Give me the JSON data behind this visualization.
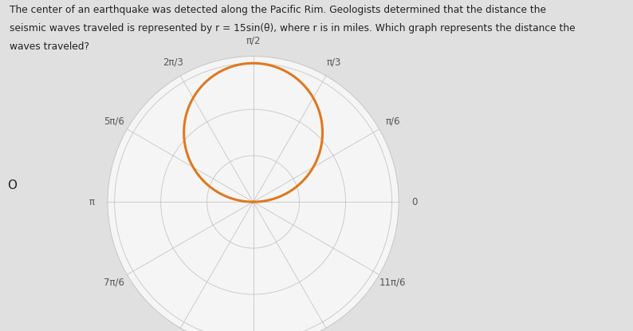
{
  "curve_color": "#E07820",
  "curve_linewidth": 2.2,
  "r_amplitude": 15,
  "r_max": 40,
  "r_ticks": [
    5,
    10,
    15,
    20,
    25,
    30,
    35,
    40
  ],
  "background_color": "#f5f5f5",
  "grid_color": "#c0c0c0",
  "figure_bg": "#e0e0e0",
  "text_color": "#222222",
  "label_color": "#555555",
  "line1": "The center of an earthquake was detected along the Pacific Rim. Geologists determined that the distance the",
  "line2": "seismic waves traveled is represented by r = 15sin(θ), where r is in miles. Which graph represents the distance the",
  "line3": "waves traveled?",
  "option_label": "O"
}
